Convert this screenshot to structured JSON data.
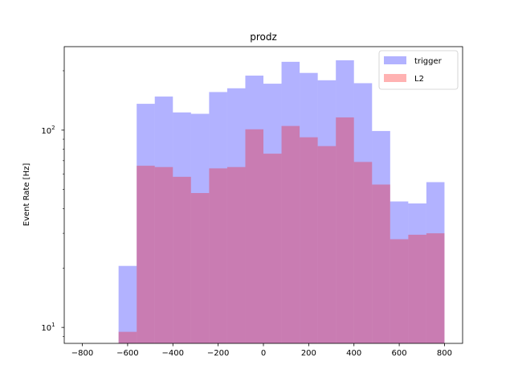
{
  "chart_data": {
    "type": "bar",
    "title": "prodz",
    "xlabel": "",
    "ylabel": "Event Rate [Hz]",
    "ylog": true,
    "xlim": [
      -880,
      880
    ],
    "ylim": [
      8.3,
      265
    ],
    "xticks": [
      -800,
      -600,
      -400,
      -200,
      0,
      200,
      400,
      600,
      800
    ],
    "xtick_labels": [
      "−800",
      "−600",
      "−400",
      "−200",
      "0",
      "200",
      "400",
      "600",
      "800"
    ],
    "yticks_major": [
      10,
      100
    ],
    "ytick_labels": [
      "10",
      "10"
    ],
    "ytick_exponents": [
      "1",
      "2"
    ],
    "bin_edges": [
      -800,
      -720,
      -640,
      -560,
      -480,
      -400,
      -320,
      -240,
      -160,
      -80,
      0,
      80,
      160,
      240,
      320,
      400,
      480,
      560,
      640,
      720,
      800
    ],
    "series": [
      {
        "name": "trigger",
        "color": "#0000ff",
        "alpha": 0.3,
        "values": [
          0,
          0,
          20.5,
          136,
          148,
          123,
          121,
          156,
          163,
          189,
          172,
          222,
          195,
          179,
          226,
          173,
          99,
          43.5,
          42.5,
          54.5
        ]
      },
      {
        "name": "L2",
        "color": "#ff0000",
        "alpha": 0.3,
        "values": [
          0,
          0,
          9.5,
          66,
          65,
          58,
          48,
          64,
          65,
          101,
          76,
          105,
          92,
          83,
          116,
          69,
          53,
          28,
          29.5,
          30
        ]
      }
    ],
    "legend_position": "top-right",
    "grid": false
  }
}
